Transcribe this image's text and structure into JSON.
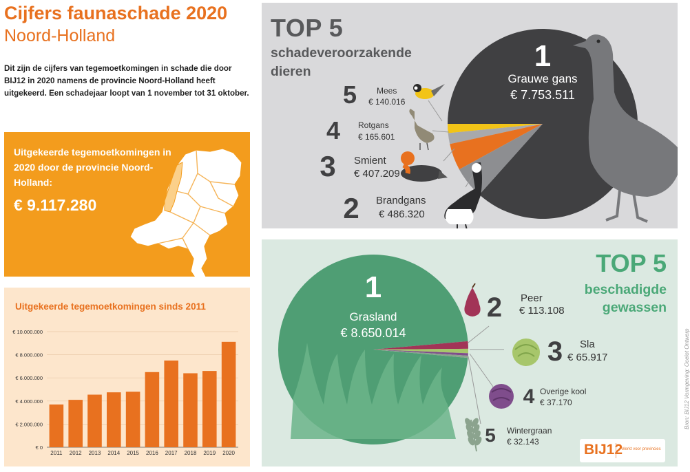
{
  "header": {
    "title": "Cijfers faunaschade 2020",
    "subtitle": "Noord-Holland",
    "intro": "Dit zijn de cijfers van tegemoetkomingen in schade die door BIJ12 in 2020 namens de provincie Noord-Holland heeft uitgekeerd. Een schadejaar loopt van 1 november tot 31 oktober."
  },
  "total": {
    "label": "Uitgekeerde tegemoetkomingen in 2020 door de provincie Noord-Holland:",
    "value": "€ 9.117.280",
    "map_icon": "netherlands-map-icon"
  },
  "colors": {
    "orange": "#e8711f",
    "orange_panel": "#f39c1d",
    "bar_panel": "#fde6cc",
    "dark_grey": "#404042",
    "green": "#4aa877",
    "green_circle": "#4f9e74",
    "yellow": "#f2c417",
    "magenta": "#a23457"
  },
  "chart_data": [
    {
      "type": "bar",
      "title": "Uitgekeerde tegemoetkomingen sinds 2011",
      "categories": [
        "2011",
        "2012",
        "2013",
        "2014",
        "2015",
        "2016",
        "2017",
        "2018",
        "2019",
        "2020"
      ],
      "values": [
        3700000,
        4100000,
        4550000,
        4750000,
        4800000,
        6500000,
        7500000,
        6400000,
        6600000,
        9117280
      ],
      "yticks": [
        "€ 0",
        "€ 2.000.000",
        "€ 4.000.000",
        "€ 6.000.000",
        "€ 8.000.000",
        "€ 10.000.000"
      ],
      "ylim": [
        0,
        10000000
      ],
      "grid": true
    },
    {
      "type": "pie",
      "title": "TOP 5",
      "subtitle": "schadeveroorzakende dieren",
      "items": [
        {
          "rank": "1",
          "name": "Grauwe gans",
          "amount": "€ 7.753.511",
          "value": 7753511,
          "icon": "greylag-goose-icon",
          "color": "#404042"
        },
        {
          "rank": "2",
          "name": "Brandgans",
          "amount": "€ 486.320",
          "value": 486320,
          "icon": "barnacle-goose-icon",
          "color": "#8d8e91"
        },
        {
          "rank": "3",
          "name": "Smient",
          "amount": "€ 407.209",
          "value": 407209,
          "icon": "wigeon-icon",
          "color": "#e8711f"
        },
        {
          "rank": "4",
          "name": "Rotgans",
          "amount": "€ 165.601",
          "value": 165601,
          "icon": "brent-goose-icon",
          "color": "#a8a9ac"
        },
        {
          "rank": "5",
          "name": "Mees",
          "amount": "€ 140.016",
          "value": 140016,
          "icon": "tit-bird-icon",
          "color": "#f2c417"
        }
      ]
    },
    {
      "type": "pie",
      "title": "TOP 5",
      "subtitle": "beschadigde gewassen",
      "items": [
        {
          "rank": "1",
          "name": "Grasland",
          "amount": "€ 8.650.014",
          "value": 8650014,
          "icon": "grass-icon",
          "color": "#4f9e74"
        },
        {
          "rank": "2",
          "name": "Peer",
          "amount": "€ 113.108",
          "value": 113108,
          "icon": "pear-icon",
          "color": "#a23457"
        },
        {
          "rank": "3",
          "name": "Sla",
          "amount": "€ 65.917",
          "value": 65917,
          "icon": "lettuce-icon",
          "color": "#a7c66b"
        },
        {
          "rank": "4",
          "name": "Overige kool",
          "amount": "€ 37.170",
          "value": 37170,
          "icon": "cabbage-icon",
          "color": "#7f4d8c"
        },
        {
          "rank": "5",
          "name": "Wintergraan",
          "amount": "€ 32.143",
          "value": 32143,
          "icon": "wheat-icon",
          "color": "#8ba38e"
        }
      ]
    }
  ],
  "logo": {
    "mark": "BIJ12",
    "tagline": "Werkt voor provincies"
  },
  "credit": "Bron: BIJ12   Vormgeving: Ocelot Ontwerp"
}
